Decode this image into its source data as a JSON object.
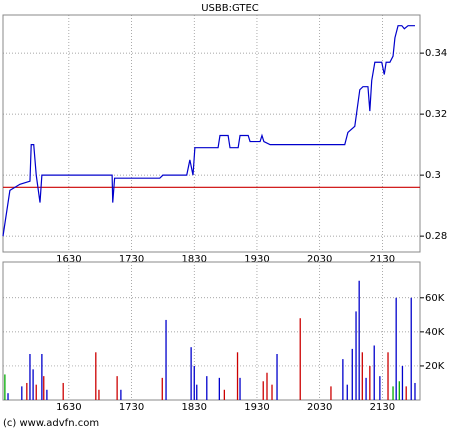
{
  "chart_data": [
    {
      "type": "line",
      "title": "USBB:GTEC",
      "x": [
        15.45,
        15.56,
        15.72,
        15.88,
        15.9,
        15.94,
        15.98,
        16.04,
        16.07,
        17.19,
        17.2,
        17.23,
        17.95,
        18.0,
        18.38,
        18.43,
        18.48,
        18.51,
        18.88,
        18.91,
        19.04,
        19.07,
        19.2,
        19.23,
        19.36,
        19.39,
        19.55,
        19.58,
        19.61,
        19.71,
        20.9,
        20.95,
        21.06,
        21.14,
        21.19,
        21.27,
        21.3,
        21.33,
        21.38,
        21.49,
        21.53,
        21.56,
        21.62,
        21.67,
        21.7,
        21.75,
        21.81,
        21.85,
        21.91,
        22.02
      ],
      "series": [
        {
          "color": "#0000cc",
          "values": [
            0.28,
            0.295,
            0.297,
            0.298,
            0.31,
            0.31,
            0.3,
            0.291,
            0.3,
            0.3,
            0.291,
            0.299,
            0.299,
            0.3,
            0.3,
            0.305,
            0.3,
            0.309,
            0.309,
            0.313,
            0.313,
            0.309,
            0.309,
            0.313,
            0.313,
            0.311,
            0.311,
            0.313,
            0.311,
            0.31,
            0.31,
            0.314,
            0.316,
            0.328,
            0.329,
            0.329,
            0.321,
            0.331,
            0.337,
            0.337,
            0.333,
            0.337,
            0.337,
            0.339,
            0.345,
            0.349,
            0.349,
            0.348,
            0.349,
            0.349
          ]
        }
      ],
      "reference_line": {
        "value": 0.296,
        "color": "#cc0000"
      },
      "xlim": [
        15.45,
        22.1
      ],
      "xticks": [
        {
          "value": 16.5,
          "label": "1630"
        },
        {
          "value": 17.5,
          "label": "1730"
        },
        {
          "value": 18.5,
          "label": "1830"
        },
        {
          "value": 19.5,
          "label": "1930"
        },
        {
          "value": 20.5,
          "label": "2030"
        },
        {
          "value": 21.5,
          "label": "2130"
        }
      ],
      "ylim": [
        0.2748,
        0.3525
      ],
      "yticks": [
        0.28,
        0.3,
        0.32,
        0.34
      ],
      "grid": true
    },
    {
      "type": "bar",
      "x": [
        15.48,
        15.53,
        15.75,
        15.83,
        15.88,
        15.93,
        15.98,
        16.07,
        16.1,
        16.15,
        16.41,
        16.93,
        16.98,
        17.27,
        17.33,
        17.99,
        18.05,
        18.45,
        18.5,
        18.54,
        18.7,
        18.9,
        18.98,
        19.19,
        19.23,
        19.6,
        19.66,
        19.74,
        19.82,
        20.19,
        20.68,
        20.87,
        20.94,
        21.02,
        21.08,
        21.13,
        21.18,
        21.24,
        21.3,
        21.37,
        21.46,
        21.59,
        21.67,
        21.72,
        21.77,
        21.82,
        21.88,
        21.96,
        22.02
      ],
      "values": [
        15000,
        4000,
        8000,
        10000,
        27000,
        18000,
        9000,
        27000,
        14000,
        6000,
        10000,
        28000,
        6000,
        14000,
        6000,
        13000,
        47000,
        31000,
        20000,
        9000,
        14000,
        13000,
        6000,
        28000,
        13000,
        11000,
        16000,
        9000,
        27000,
        48000,
        8000,
        24000,
        9000,
        30000,
        52000,
        70000,
        28000,
        13000,
        20000,
        32000,
        14000,
        28000,
        8000,
        60000,
        11000,
        20000,
        8000,
        60000,
        10000
      ],
      "colors": [
        "#00aa00",
        "#0000cc",
        "#0000cc",
        "#cc0000",
        "#0000cc",
        "#0000cc",
        "#cc0000",
        "#0000cc",
        "#cc0000",
        "#0000cc",
        "#cc0000",
        "#cc0000",
        "#cc0000",
        "#cc0000",
        "#0000cc",
        "#cc0000",
        "#0000cc",
        "#0000cc",
        "#0000cc",
        "#0000cc",
        "#0000cc",
        "#0000cc",
        "#cc0000",
        "#cc0000",
        "#0000cc",
        "#cc0000",
        "#cc0000",
        "#cc0000",
        "#0000cc",
        "#cc0000",
        "#cc0000",
        "#0000cc",
        "#0000cc",
        "#0000cc",
        "#0000cc",
        "#0000cc",
        "#cc0000",
        "#0000cc",
        "#cc0000",
        "#0000cc",
        "#0000cc",
        "#cc0000",
        "#00aa00",
        "#0000cc",
        "#00aa00",
        "#0000cc",
        "#cc0000",
        "#0000cc",
        "#0000cc"
      ],
      "xlim": [
        15.45,
        22.1
      ],
      "xticks": [
        {
          "value": 16.5,
          "label": "1630"
        },
        {
          "value": 17.5,
          "label": "1730"
        },
        {
          "value": 18.5,
          "label": "1830"
        },
        {
          "value": 19.5,
          "label": "1930"
        },
        {
          "value": 20.5,
          "label": "2030"
        },
        {
          "value": 21.5,
          "label": "2130"
        }
      ],
      "ylim": [
        0,
        81000
      ],
      "yticks": [
        {
          "value": 20000,
          "label": "20K"
        },
        {
          "value": 40000,
          "label": "40K"
        },
        {
          "value": 60000,
          "label": "60K"
        }
      ],
      "grid": true
    }
  ],
  "footer": "(c) www.advfn.com"
}
